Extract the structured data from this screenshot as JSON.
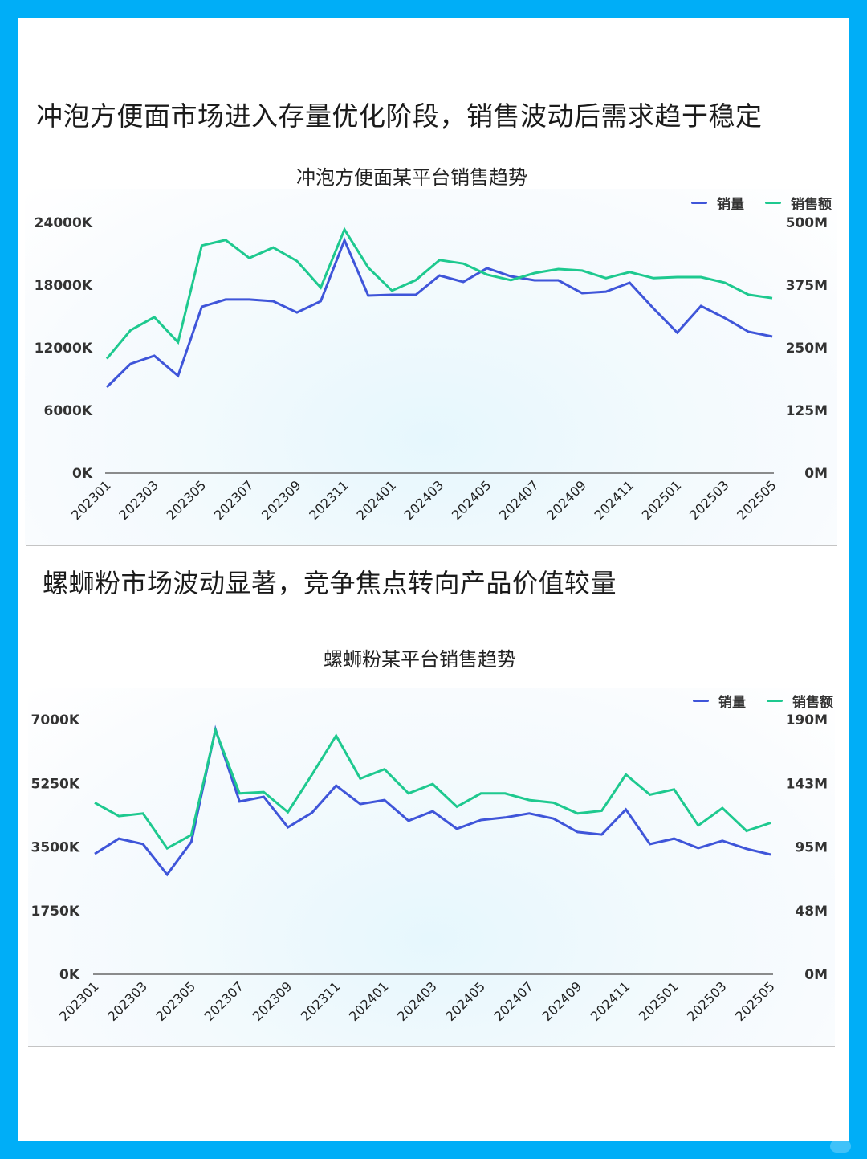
{
  "colors": {
    "frame": "#00aef7",
    "card": "#ffffff",
    "series_volume": "#3f55d9",
    "series_revenue": "#1ec98f",
    "axis": "#555555",
    "text": "#1b1b1b"
  },
  "sections": [
    {
      "headline": "冲泡方便面市场进入存量优化阶段，销售波动后需求趋于稳定",
      "chart_title": "冲泡方便面某平台销售趋势"
    },
    {
      "headline": "螺蛳粉市场波动显著，竞争焦点转向产品价值较量",
      "chart_title": "螺蛳粉某平台销售趋势"
    }
  ],
  "legend": {
    "volume": "销量",
    "revenue": "销售额"
  },
  "chart_data": [
    {
      "type": "line",
      "title": "冲泡方便面某平台销售趋势",
      "xlabel": "",
      "ylabel_left": "销量",
      "ylabel_right": "销售额",
      "legend_position": "top-right",
      "grid": false,
      "x": [
        "202301",
        "202302",
        "202303",
        "202304",
        "202305",
        "202306",
        "202307",
        "202308",
        "202309",
        "202310",
        "202311",
        "202312",
        "202401",
        "202402",
        "202403",
        "202404",
        "202405",
        "202406",
        "202407",
        "202408",
        "202409",
        "202410",
        "202411",
        "202412",
        "202501",
        "202502",
        "202503",
        "202504",
        "202505"
      ],
      "x_tick_labels": [
        "202301",
        "202303",
        "202305",
        "202307",
        "202309",
        "202311",
        "202401",
        "202403",
        "202405",
        "202407",
        "202409",
        "202411",
        "202501",
        "202503",
        "202505"
      ],
      "y_left_ticks": [
        "0K",
        "6000K",
        "12000K",
        "18000K",
        "24000K"
      ],
      "y_right_ticks": [
        "0M",
        "125M",
        "250M",
        "375M",
        "500M"
      ],
      "ylim_left": [
        0,
        24000
      ],
      "ylim_right": [
        0,
        500
      ],
      "series": [
        {
          "name": "销量",
          "axis": "left",
          "unit": "K",
          "values": [
            8230,
            10460,
            11230,
            9310,
            15920,
            16620,
            16620,
            16460,
            15380,
            16460,
            22300,
            17000,
            17080,
            17080,
            18920,
            18310,
            19620,
            18850,
            18460,
            18460,
            17230,
            17380,
            18230,
            15770,
            13460,
            16000,
            14850,
            13540,
            13080
          ]
        },
        {
          "name": "销售额",
          "axis": "right",
          "unit": "M",
          "values": [
            228,
            285,
            311,
            261,
            454,
            465,
            429,
            450,
            423,
            370,
            486,
            410,
            364,
            385,
            425,
            418,
            396,
            385,
            399,
            407,
            404,
            389,
            401,
            389,
            391,
            391,
            380,
            356,
            349
          ]
        }
      ]
    },
    {
      "type": "line",
      "title": "螺蛳粉某平台销售趋势",
      "xlabel": "",
      "ylabel_left": "销量",
      "ylabel_right": "销售额",
      "legend_position": "top-right",
      "grid": false,
      "x": [
        "202301",
        "202302",
        "202303",
        "202304",
        "202305",
        "202306",
        "202307",
        "202308",
        "202309",
        "202310",
        "202311",
        "202312",
        "202401",
        "202402",
        "202403",
        "202404",
        "202405",
        "202406",
        "202407",
        "202408",
        "202409",
        "202410",
        "202411",
        "202412",
        "202501",
        "202502",
        "202503",
        "202504",
        "202505"
      ],
      "x_tick_labels": [
        "202301",
        "202303",
        "202305",
        "202307",
        "202309",
        "202311",
        "202401",
        "202403",
        "202405",
        "202407",
        "202409",
        "202411",
        "202501",
        "202503",
        "202505"
      ],
      "y_left_ticks": [
        "0K",
        "1750K",
        "3500K",
        "5250K",
        "7000K"
      ],
      "y_right_ticks": [
        "0M",
        "48M",
        "95M",
        "143M",
        "190M"
      ],
      "ylim_left": [
        0,
        7000
      ],
      "ylim_right": [
        0,
        190
      ],
      "series": [
        {
          "name": "销量",
          "axis": "left",
          "unit": "K",
          "values": [
            3310,
            3730,
            3580,
            2740,
            3640,
            6730,
            4750,
            4880,
            4040,
            4440,
            5190,
            4680,
            4790,
            4220,
            4480,
            4000,
            4240,
            4310,
            4420,
            4280,
            3910,
            3840,
            4530,
            3580,
            3730,
            3470,
            3670,
            3450,
            3290
          ]
        },
        {
          "name": "销售额",
          "axis": "right",
          "unit": "M",
          "values": [
            128,
            118,
            120,
            94,
            104,
            182,
            135,
            136,
            121,
            149,
            178,
            146,
            153,
            135,
            142,
            125,
            135,
            135,
            130,
            128,
            120,
            122,
            149,
            134,
            138,
            111,
            124,
            107,
            113
          ]
        }
      ]
    }
  ]
}
